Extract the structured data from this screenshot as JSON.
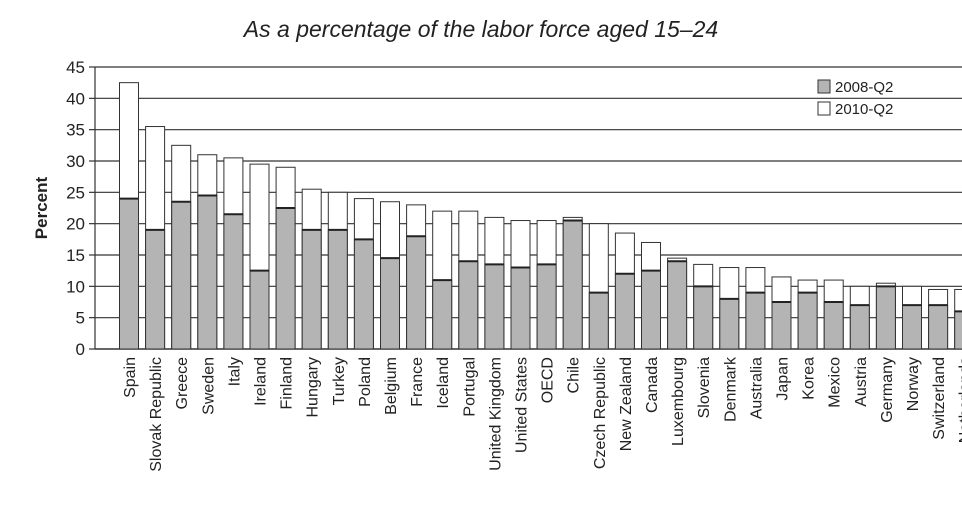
{
  "chart_data": {
    "type": "bar",
    "stacked": false,
    "title": "As a percentage of the labor force aged 15–24",
    "xlabel": "",
    "ylabel": "Percent",
    "ylim": [
      0,
      45
    ],
    "yticks": [
      0,
      5,
      10,
      15,
      20,
      25,
      30,
      35,
      40,
      45
    ],
    "grid": true,
    "legend_position": "top-right",
    "categories": [
      "Spain",
      "Slovak Republic",
      "Greece",
      "Sweden",
      "Italy",
      "Ireland",
      "Finland",
      "Hungary",
      "Turkey",
      "Poland",
      "Belgium",
      "France",
      "Iceland",
      "Portugal",
      "United Kingdom",
      "United States",
      "OECD",
      "Chile",
      "Czech Republic",
      "New Zealand",
      "Canada",
      "Luxembourg",
      "Slovenia",
      "Denmark",
      "Australia",
      "Japan",
      "Korea",
      "Mexico",
      "Austria",
      "Germany",
      "Norway",
      "Switzerland",
      "Netherlands"
    ],
    "series": [
      {
        "name": "2008-Q2",
        "color": "#b4b4b4",
        "values": [
          24,
          19,
          23.5,
          24.5,
          21.5,
          12.5,
          22.5,
          19,
          19,
          17.5,
          14.5,
          18,
          11,
          14,
          13.5,
          13,
          13.5,
          20.5,
          9,
          12,
          12.5,
          14,
          10,
          8,
          9,
          7.5,
          9,
          7.5,
          7,
          10,
          7,
          7,
          6
        ]
      },
      {
        "name": "2010-Q2",
        "color": "#ffffff",
        "values": [
          42.5,
          35.5,
          32.5,
          31,
          30.5,
          29.5,
          29,
          25.5,
          25,
          24,
          23.5,
          23,
          22,
          22,
          21,
          20.5,
          20.5,
          21,
          20,
          18.5,
          17,
          14.5,
          13.5,
          13,
          13,
          11.5,
          11,
          11,
          10,
          10.5,
          10,
          9.5,
          9.5
        ]
      }
    ]
  }
}
